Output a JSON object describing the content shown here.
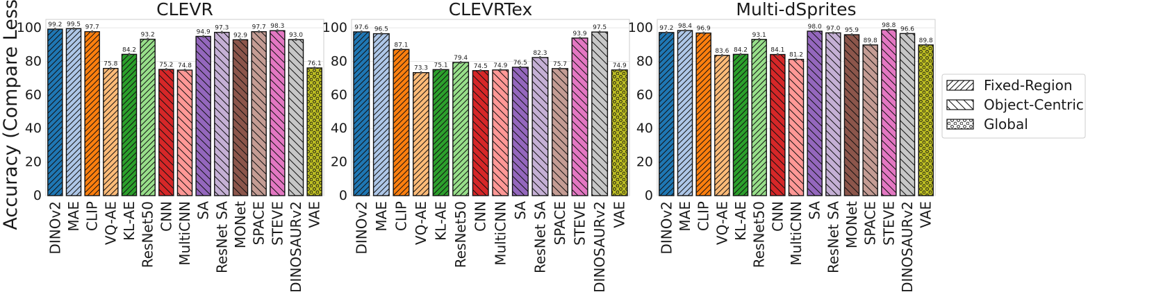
{
  "ylabel": "Accuracy (Compare Less)",
  "legend": {
    "placement": "right",
    "entries": [
      {
        "label": "Fixed-Region",
        "hatch": "fwd"
      },
      {
        "label": "Object-Centric",
        "hatch": "back"
      },
      {
        "label": "Global",
        "hatch": "dots"
      }
    ]
  },
  "chart_data": [
    {
      "type": "bar",
      "title": "CLEVR",
      "ylim": [
        0,
        105
      ],
      "yticks": [
        0,
        20,
        40,
        60,
        80,
        100
      ],
      "grid": true,
      "categories": [
        "DINOv2",
        "MAE",
        "CLIP",
        "VQ-AE",
        "KL-AE",
        "ResNet50",
        "CNN",
        "MultiCNN",
        "SA",
        "ResNet SA",
        "MONet",
        "SPACE",
        "STEVE",
        "DINOSAURv2",
        "VAE"
      ],
      "values": [
        99.2,
        99.5,
        97.7,
        75.8,
        84.2,
        93.2,
        75.2,
        74.8,
        94.9,
        97.3,
        92.9,
        97.7,
        98.3,
        93.0,
        76.1
      ],
      "labels": [
        "99.2",
        "99.5",
        "97.7",
        "75.8",
        "84.2",
        "93.2",
        "75.2",
        "74.8",
        "94.9",
        "97.3",
        "92.9",
        "97.7",
        "98.3",
        "93.0",
        "76.1"
      ]
    },
    {
      "type": "bar",
      "title": "CLEVRTex",
      "ylim": [
        0,
        105
      ],
      "yticks": [
        0,
        20,
        40,
        60,
        80,
        100
      ],
      "grid": true,
      "categories": [
        "DINOv2",
        "MAE",
        "CLIP",
        "VQ-AE",
        "KL-AE",
        "ResNet50",
        "CNN",
        "MultiCNN",
        "SA",
        "ResNet SA",
        "SPACE",
        "STEVE",
        "DINOSAURv2",
        "VAE"
      ],
      "values": [
        97.6,
        96.5,
        87.1,
        73.3,
        75.1,
        79.4,
        74.5,
        74.9,
        76.5,
        82.3,
        75.7,
        93.9,
        97.5,
        74.9
      ],
      "labels": [
        "97.6",
        "96.5",
        "87.1",
        "73.3",
        "75.1",
        "79.4",
        "74.5",
        "74.9",
        "76.5",
        "82.3",
        "75.7",
        "93.9",
        "97.5",
        "74.9"
      ]
    },
    {
      "type": "bar",
      "title": "Multi-dSprites",
      "ylim": [
        0,
        105
      ],
      "yticks": [
        0,
        20,
        40,
        60,
        80,
        100
      ],
      "grid": true,
      "categories": [
        "DINOv2",
        "MAE",
        "CLIP",
        "VQ-AE",
        "KL-AE",
        "ResNet50",
        "CNN",
        "MultiCNN",
        "SA",
        "ResNet SA",
        "MONet",
        "SPACE",
        "STEVE",
        "DINOSAURv2",
        "VAE"
      ],
      "values": [
        97.2,
        98.4,
        96.9,
        83.6,
        84.2,
        93.1,
        84.1,
        81.2,
        98.0,
        97.0,
        95.9,
        89.8,
        98.8,
        96.6,
        89.8
      ],
      "labels": [
        "97.2",
        "98.4",
        "96.9",
        "83.6",
        "84.2",
        "93.1",
        "84.1",
        "81.2",
        "98.0",
        "97.0",
        "95.9",
        "89.8",
        "98.8",
        "96.6",
        "89.8"
      ]
    }
  ],
  "model_style": {
    "DINOv2": {
      "color": "#1f77b4",
      "hatch": "fwd"
    },
    "MAE": {
      "color": "#aec7e8",
      "hatch": "fwd"
    },
    "CLIP": {
      "color": "#ff7f0e",
      "hatch": "fwd"
    },
    "VQ-AE": {
      "color": "#ffbb78",
      "hatch": "fwd"
    },
    "KL-AE": {
      "color": "#2ca02c",
      "hatch": "fwd"
    },
    "ResNet50": {
      "color": "#98df8a",
      "hatch": "fwd"
    },
    "CNN": {
      "color": "#d62728",
      "hatch": "back"
    },
    "MultiCNN": {
      "color": "#ff9896",
      "hatch": "back"
    },
    "SA": {
      "color": "#9467bd",
      "hatch": "back"
    },
    "ResNet SA": {
      "color": "#c5b0d5",
      "hatch": "back"
    },
    "MONet": {
      "color": "#8c564b",
      "hatch": "back"
    },
    "SPACE": {
      "color": "#c49c94",
      "hatch": "back"
    },
    "STEVE": {
      "color": "#e377c2",
      "hatch": "back"
    },
    "DINOSAURv2": {
      "color": "#c7c7c7",
      "hatch": "back"
    },
    "VAE": {
      "color": "#bcbd22",
      "hatch": "dots"
    }
  }
}
